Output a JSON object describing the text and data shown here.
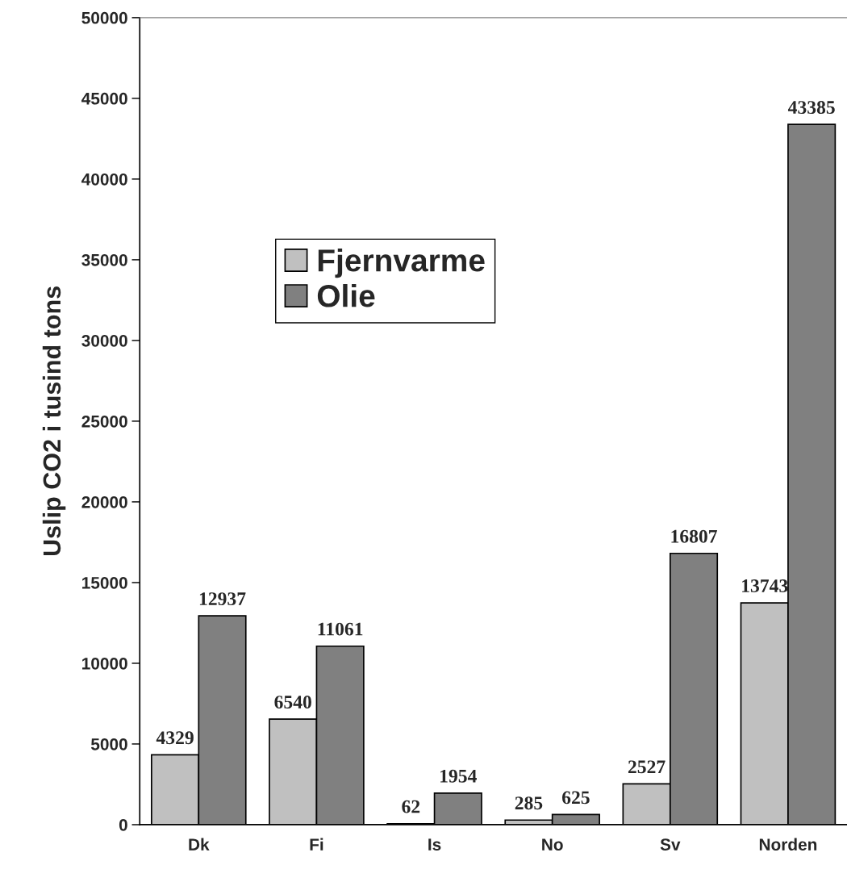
{
  "chart_data": {
    "type": "bar",
    "ylabel": "Uslip CO2 i tusind tons",
    "categories": [
      "Dk",
      "Fi",
      "Is",
      "No",
      "Sv",
      "Norden"
    ],
    "series": [
      {
        "name": "Fjernvarme",
        "color": "#c0c0c0",
        "values": [
          4329,
          6540,
          62,
          285,
          2527,
          13743
        ]
      },
      {
        "name": "Olie",
        "color": "#808080",
        "values": [
          12937,
          11061,
          1954,
          625,
          16807,
          43385
        ]
      }
    ],
    "ylim": [
      0,
      50000
    ],
    "yticks": [
      0,
      5000,
      10000,
      15000,
      20000,
      25000,
      30000,
      35000,
      40000,
      45000,
      50000
    ],
    "data_labels": true,
    "grid": false,
    "legend": "top left"
  }
}
